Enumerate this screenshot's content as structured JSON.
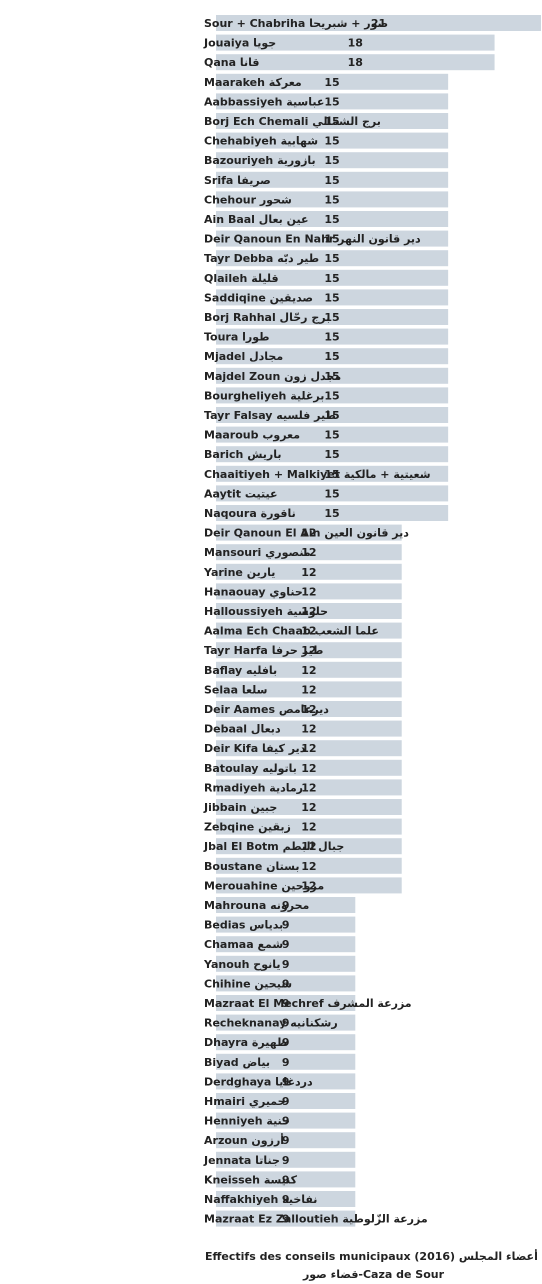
{
  "chart_data": {
    "type": "bar",
    "orientation": "horizontal",
    "bar_color": "#cdd6df",
    "categories": [
      "صور + شبريحا Sour + Chabriha",
      "جويا Jouaiya",
      "قانا Qana",
      "معركة Maarakeh",
      "عباسية Aabbassiyeh",
      "برج الشمالي Borj Ech Chemali",
      "شهابية Chehabiyeh",
      "بازورية Bazouriyeh",
      "صريفا Srifa",
      "شحور Chehour",
      "عين بعال Ain Baal",
      "دير قانون النهر Deir Qanoun En Nahr",
      "طير دبّه Tayr Debba",
      "قليلة Qlaileh",
      "صديقين Saddiqine",
      "برج رحّال Borj Rahhal",
      "طورا Toura",
      "مجادل Mjadel",
      "مجدل زون Majdel Zoun",
      "برغلية Bourgheliyeh",
      "طير فلسيه Tayr Falsay",
      "معروب Maaroub",
      "باريش Barich",
      "شعيتية + مالكية Chaaitiyeh + Malkiyet",
      "عيتيت Aaytit",
      "ناقورة Naqoura",
      "دير قانون العين Deir Qanoun El Ain",
      "منصوري Mansouri",
      "يارين Yarine",
      "حناوي Hanaouay",
      "حلوسية Halloussiyeh",
      "علما الشعب Aalma Ech Chaab",
      "طير حرفا Tayr Harfa",
      "بافليه Baflay",
      "سلعا Selaa",
      "ديرعامص Deir Aames",
      "دبعال Debaal",
      "دير كيفا Deir Kifa",
      "باتوليه Batoulay",
      "رمادية Rmadiyeh",
      "جبين Jibbain",
      "زبقين Zebqine",
      "جبال البطم Jbal El Botm",
      "بستان Boustane",
      "مروحين Merouahine",
      "محرونه Mahrouna",
      "بدياس Bedias",
      "شمع Chamaa",
      "يانوح Yanouh",
      "شيحين Chihine",
      "مزرعة المشرف Mazraat El Mechref",
      "رشكنانيه Recheknanay",
      "ظهيرة Dhayra",
      "بياض Biyad",
      "دردغايا Derdghaya",
      "حميري Hmairi",
      "حنية Henniyeh",
      "أرزون Arzoun",
      "جناتا Jennata",
      "كنيسة Kneisseh",
      "نفاخية Naffakhiyeh",
      "مزرعة الزّلوطية Mazraat Ez Zalloutieh"
    ],
    "values": [
      21,
      18,
      18,
      15,
      15,
      15,
      15,
      15,
      15,
      15,
      15,
      15,
      15,
      15,
      15,
      15,
      15,
      15,
      15,
      15,
      15,
      15,
      15,
      15,
      15,
      15,
      12,
      12,
      12,
      12,
      12,
      12,
      12,
      12,
      12,
      12,
      12,
      12,
      12,
      12,
      12,
      12,
      12,
      12,
      12,
      9,
      9,
      9,
      9,
      9,
      9,
      9,
      9,
      9,
      9,
      9,
      9,
      9,
      9,
      9,
      9,
      9
    ],
    "xlim": [
      0,
      21
    ],
    "caption_line1": "Effectifs des conseils municipaux (2016) عدد أعضاء المجلس",
    "caption_line2": "قضاء صور-Caza de Sour"
  }
}
